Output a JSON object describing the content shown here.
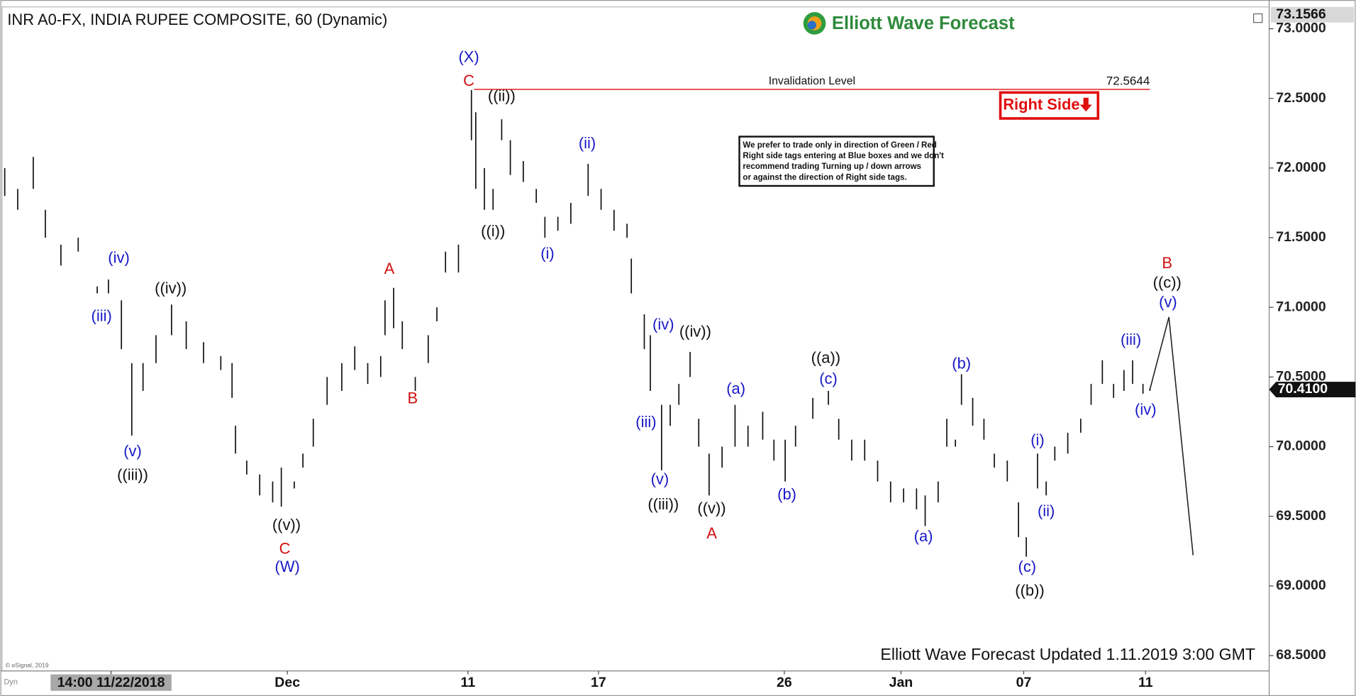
{
  "chart_data": {
    "type": "range",
    "title": "INR A0-FX, INDIA RUPEE COMPOSITE, 60 (Dynamic)",
    "brand": "Elliott Wave Forecast",
    "footer": "Elliott Wave Forecast Updated 1.11.2019 3:00 GMT",
    "copyright": "© eSignal, 2019",
    "corner_tag": "Dyn",
    "bar_color": "#111111",
    "xlim": [
      0,
      146.8
    ],
    "ylim": [
      68.39,
      73.1566
    ],
    "xticks": [
      {
        "value": 12.8,
        "label": "14:00 11/22/2018"
      },
      {
        "value": 33.2,
        "label": "Dec"
      },
      {
        "value": 54.1,
        "label": "11"
      },
      {
        "value": 69.2,
        "label": "17"
      },
      {
        "value": 90.7,
        "label": "26"
      },
      {
        "value": 104.2,
        "label": "Jan"
      },
      {
        "value": 118.4,
        "label": "07"
      },
      {
        "value": 132.5,
        "label": "11"
      }
    ],
    "yticks": [
      {
        "value": 68.5,
        "label": "68.5000"
      },
      {
        "value": 69.0,
        "label": "69.0000"
      },
      {
        "value": 69.5,
        "label": "69.5000"
      },
      {
        "value": 70.0,
        "label": "70.0000"
      },
      {
        "value": 70.5,
        "label": "70.5000"
      },
      {
        "value": 71.0,
        "label": "71.0000"
      },
      {
        "value": 71.5,
        "label": "71.5000"
      },
      {
        "value": 72.0,
        "label": "72.0000"
      },
      {
        "value": 72.5,
        "label": "72.5000"
      },
      {
        "value": 73.0,
        "label": "73.0000"
      }
    ],
    "last_price": {
      "value": 70.41,
      "label": "70.4100"
    },
    "x": [
      0.5,
      2,
      3.8,
      5.2,
      7,
      9,
      11.2,
      12.5,
      14,
      15.2,
      16.5,
      18,
      19.8,
      21.5,
      23.5,
      25.5,
      26.8,
      27.2,
      28.5,
      30,
      31.5,
      32.5,
      34,
      35,
      36.2,
      37.8,
      39.5,
      41,
      42.5,
      44,
      44.5,
      45.5,
      46.5,
      48,
      49.5,
      50.5,
      51.5,
      53,
      54.5,
      55,
      56,
      57,
      58,
      59,
      60.5,
      62,
      63,
      64.5,
      66,
      68,
      69.5,
      71,
      72.5,
      73,
      74.5,
      75.2,
      76.5,
      77.5,
      78.5,
      79.8,
      80.8,
      82,
      83.5,
      85,
      86.5,
      88.2,
      89.5,
      90.8,
      92,
      94,
      95.8,
      97,
      98.5,
      100,
      101.5,
      103,
      104.5,
      106,
      107,
      108.5,
      109.5,
      110.5,
      111.2,
      112.5,
      113.8,
      115,
      116.5,
      117.8,
      118.7,
      120,
      121,
      122,
      123.5,
      125,
      126.2,
      127.5,
      128.8,
      130,
      131,
      132.2,
      133
    ],
    "high": [
      72.0,
      71.85,
      72.08,
      71.7,
      71.45,
      71.5,
      71.15,
      71.2,
      71.05,
      70.6,
      70.6,
      70.8,
      71.02,
      70.9,
      70.75,
      70.65,
      70.6,
      70.15,
      69.9,
      69.8,
      69.75,
      69.85,
      69.75,
      69.95,
      70.2,
      70.5,
      70.6,
      70.72,
      70.6,
      70.65,
      71.05,
      71.14,
      70.9,
      70.5,
      70.8,
      71.0,
      71.4,
      71.45,
      72.56,
      72.4,
      72.0,
      71.85,
      72.35,
      72.2,
      72.05,
      71.85,
      71.65,
      71.65,
      71.75,
      72.03,
      71.85,
      71.7,
      71.6,
      71.35,
      70.95,
      70.8,
      70.3,
      70.3,
      70.45,
      70.68,
      70.2,
      69.95,
      70.0,
      70.3,
      70.15,
      70.25,
      70.05,
      70.05,
      70.15,
      70.35,
      70.4,
      70.2,
      70.05,
      70.05,
      69.9,
      69.75,
      69.7,
      69.7,
      69.65,
      69.75,
      70.2,
      70.05,
      70.52,
      70.35,
      70.2,
      69.95,
      69.9,
      69.6,
      69.35,
      69.95,
      69.75,
      70.0,
      70.1,
      70.2,
      70.45,
      70.62,
      70.45,
      70.55,
      70.62,
      70.45,
      70.42
    ],
    "low": [
      71.8,
      71.7,
      71.85,
      71.5,
      71.3,
      71.4,
      71.1,
      71.1,
      70.7,
      70.08,
      70.4,
      70.6,
      70.8,
      70.7,
      70.6,
      70.55,
      70.35,
      69.95,
      69.8,
      69.65,
      69.6,
      69.57,
      69.7,
      69.85,
      70.0,
      70.3,
      70.4,
      70.55,
      70.45,
      70.5,
      70.8,
      70.85,
      70.7,
      70.4,
      70.6,
      70.9,
      71.25,
      71.25,
      72.2,
      71.85,
      71.7,
      71.7,
      72.2,
      71.95,
      71.9,
      71.75,
      71.5,
      71.55,
      71.6,
      71.8,
      71.7,
      71.55,
      71.5,
      71.1,
      70.7,
      70.4,
      69.83,
      70.15,
      70.3,
      70.5,
      70.0,
      69.65,
      69.85,
      70.0,
      70.0,
      70.05,
      69.9,
      69.75,
      70.0,
      70.2,
      70.3,
      70.05,
      69.9,
      69.9,
      69.75,
      69.6,
      69.6,
      69.55,
      69.43,
      69.6,
      70.0,
      70.0,
      70.3,
      70.15,
      70.05,
      69.85,
      69.75,
      69.35,
      69.21,
      69.7,
      69.65,
      69.9,
      69.95,
      70.1,
      70.3,
      70.45,
      70.35,
      70.4,
      70.45,
      70.38,
      70.4
    ],
    "projection": {
      "x": [
        133,
        135.2,
        138
      ],
      "y": [
        70.41,
        70.93,
        69.22
      ]
    },
    "invalidation": {
      "label": "Invalidation Level",
      "value": 72.5644,
      "x": [
        54.8,
        133
      ],
      "color": "#e02020"
    },
    "right_side_tag": {
      "label": "Right Side",
      "color": "#e01010"
    },
    "note": [
      "We prefer to trade only in direction of Green / Red",
      "Right side tags entering at Blue boxes and we don't",
      "recommend trading Turning up / down arrows",
      "or against the direction of Right side tags."
    ],
    "annotations": [
      {
        "text": "(X)",
        "x": 54.2,
        "y": 72.79,
        "color": "#1818c8"
      },
      {
        "text": "C",
        "x": 54.2,
        "y": 72.62,
        "color": "#d01010"
      },
      {
        "text": "((ii))",
        "x": 58.0,
        "y": 72.51,
        "color": "#111111"
      },
      {
        "text": "((i))",
        "x": 57.0,
        "y": 71.54,
        "color": "#111111"
      },
      {
        "text": "(ii)",
        "x": 67.9,
        "y": 72.17,
        "color": "#1818c8"
      },
      {
        "text": "(i)",
        "x": 63.3,
        "y": 71.38,
        "color": "#1818c8"
      },
      {
        "text": "(iv)",
        "x": 13.7,
        "y": 71.35,
        "color": "#1818c8"
      },
      {
        "text": "((iv))",
        "x": 19.7,
        "y": 71.13,
        "color": "#111111"
      },
      {
        "text": "(iii)",
        "x": 11.7,
        "y": 70.93,
        "color": "#1818c8"
      },
      {
        "text": "(v)",
        "x": 15.3,
        "y": 69.96,
        "color": "#1818c8"
      },
      {
        "text": "((iii))",
        "x": 15.3,
        "y": 69.79,
        "color": "#111111"
      },
      {
        "text": "((v))",
        "x": 33.1,
        "y": 69.43,
        "color": "#111111"
      },
      {
        "text": "C",
        "x": 32.9,
        "y": 69.26,
        "color": "#d01010"
      },
      {
        "text": "(W)",
        "x": 33.2,
        "y": 69.13,
        "color": "#1818c8"
      },
      {
        "text": "A",
        "x": 45.0,
        "y": 71.27,
        "color": "#d01010"
      },
      {
        "text": "B",
        "x": 47.7,
        "y": 70.34,
        "color": "#d01010"
      },
      {
        "text": "(iv)",
        "x": 76.7,
        "y": 70.87,
        "color": "#1818c8"
      },
      {
        "text": "((iv))",
        "x": 80.4,
        "y": 70.82,
        "color": "#111111"
      },
      {
        "text": "(iii)",
        "x": 74.7,
        "y": 70.17,
        "color": "#1818c8"
      },
      {
        "text": "(v)",
        "x": 76.3,
        "y": 69.76,
        "color": "#1818c8"
      },
      {
        "text": "((iii))",
        "x": 76.7,
        "y": 69.58,
        "color": "#111111"
      },
      {
        "text": "((v))",
        "x": 82.3,
        "y": 69.55,
        "color": "#111111"
      },
      {
        "text": "A",
        "x": 82.3,
        "y": 69.37,
        "color": "#d01010"
      },
      {
        "text": "(a)",
        "x": 85.1,
        "y": 70.41,
        "color": "#1818c8"
      },
      {
        "text": "(b)",
        "x": 91.0,
        "y": 69.65,
        "color": "#1818c8"
      },
      {
        "text": "((a))",
        "x": 95.5,
        "y": 70.63,
        "color": "#111111"
      },
      {
        "text": "(c)",
        "x": 95.8,
        "y": 70.48,
        "color": "#1818c8"
      },
      {
        "text": "(a)",
        "x": 106.8,
        "y": 69.35,
        "color": "#1818c8"
      },
      {
        "text": "(b)",
        "x": 111.2,
        "y": 70.59,
        "color": "#1818c8"
      },
      {
        "text": "(i)",
        "x": 120.0,
        "y": 70.04,
        "color": "#1818c8"
      },
      {
        "text": "(ii)",
        "x": 121.0,
        "y": 69.53,
        "color": "#1818c8"
      },
      {
        "text": "(c)",
        "x": 118.8,
        "y": 69.13,
        "color": "#1818c8"
      },
      {
        "text": "((b))",
        "x": 119.1,
        "y": 68.96,
        "color": "#111111"
      },
      {
        "text": "(iii)",
        "x": 130.8,
        "y": 70.76,
        "color": "#1818c8"
      },
      {
        "text": "(iv)",
        "x": 132.5,
        "y": 70.26,
        "color": "#1818c8"
      },
      {
        "text": "B",
        "x": 135.0,
        "y": 71.31,
        "color": "#d01010"
      },
      {
        "text": "((c))",
        "x": 135.0,
        "y": 71.17,
        "color": "#111111"
      },
      {
        "text": "(v)",
        "x": 135.1,
        "y": 71.03,
        "color": "#1818c8"
      }
    ]
  }
}
